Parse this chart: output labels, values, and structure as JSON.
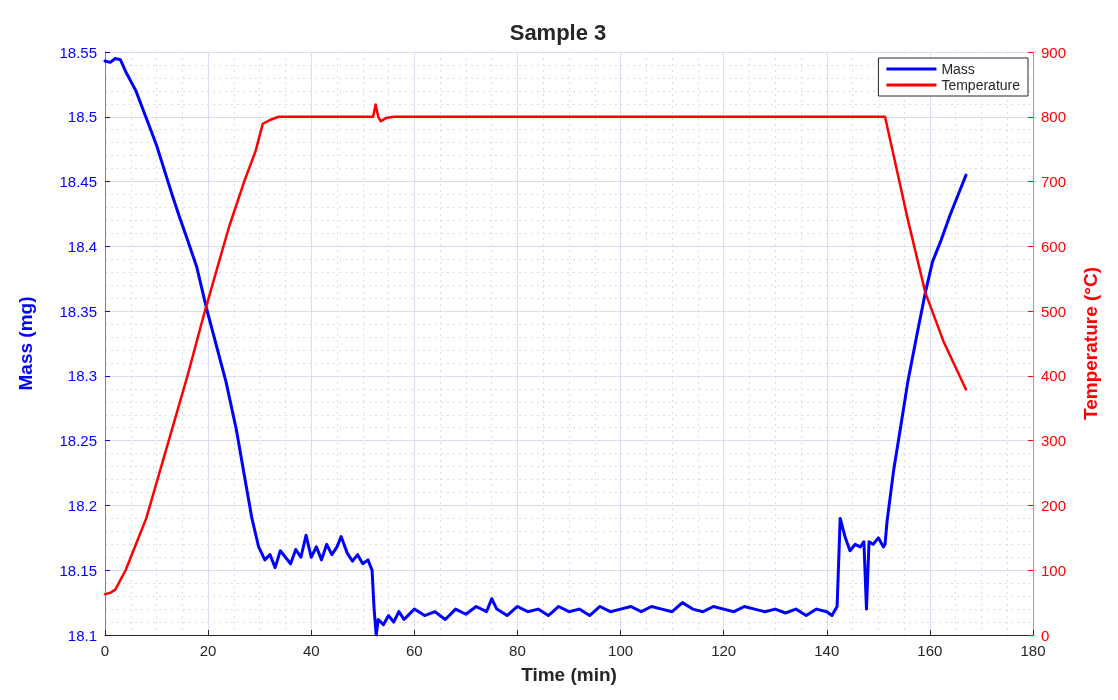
{
  "chart_data": {
    "type": "line",
    "title": "Sample 3",
    "xlabel": "Time (min)",
    "ylabel": "Mass (mg)",
    "y2label": "Temperature (°C)",
    "xlim": [
      0,
      180
    ],
    "xticks": [
      0,
      20,
      40,
      60,
      80,
      100,
      120,
      140,
      160,
      180
    ],
    "ylim": [
      18.1,
      18.55
    ],
    "yticks": [
      18.1,
      18.15,
      18.2,
      18.25,
      18.3,
      18.35,
      18.4,
      18.45,
      18.5,
      18.55
    ],
    "y2lim": [
      0,
      900
    ],
    "y2ticks": [
      0,
      100,
      200,
      300,
      400,
      500,
      600,
      700,
      800,
      900
    ],
    "grid": true,
    "legend": "top right",
    "marker": "none",
    "line_style": "solid",
    "series": [
      {
        "name": "Mass",
        "color": "#0000ff",
        "x": [
          0,
          1,
          2,
          3,
          4,
          6,
          8.2,
          10,
          11.5,
          13,
          14.5,
          16,
          17.8,
          19.7,
          21.5,
          23.5,
          25.5,
          27.3,
          28.5,
          29.8,
          31,
          32,
          33,
          34,
          35,
          36,
          37,
          38,
          39,
          40,
          41,
          42,
          43,
          44,
          45,
          45.8,
          47,
          48,
          49,
          50,
          51,
          51.8,
          52.2,
          52.6,
          53,
          54,
          55,
          56,
          57,
          58,
          60,
          62,
          64,
          66,
          68,
          70,
          72,
          74,
          75,
          76,
          78,
          80,
          82,
          84,
          86,
          88,
          90,
          92,
          94,
          96,
          98,
          100,
          102,
          104,
          106,
          108,
          110,
          112,
          114,
          116,
          118,
          120,
          122,
          124,
          126,
          128,
          130,
          132,
          134,
          136,
          138,
          140,
          141,
          142,
          142.6,
          143.6,
          144.5,
          145.5,
          146.5,
          147.2,
          147.7,
          148.2,
          149,
          150,
          151,
          151.3,
          151.7,
          153,
          154.3,
          155.7,
          157.4,
          159.1,
          160.5,
          162.2,
          163.9,
          165.5,
          167
        ],
        "values": [
          18.543,
          18.542,
          18.545,
          18.544,
          18.535,
          18.52,
          18.497,
          18.478,
          18.459,
          18.44,
          18.422,
          18.405,
          18.384,
          18.352,
          18.325,
          18.295,
          18.258,
          18.217,
          18.19,
          18.168,
          18.158,
          18.162,
          18.152,
          18.165,
          18.16,
          18.155,
          18.166,
          18.16,
          18.177,
          18.16,
          18.168,
          18.158,
          18.17,
          18.162,
          18.168,
          18.176,
          18.163,
          18.157,
          18.162,
          18.155,
          18.158,
          18.15,
          18.12,
          18.1,
          18.112,
          18.108,
          18.115,
          18.11,
          18.118,
          18.112,
          18.12,
          18.115,
          18.118,
          18.112,
          18.12,
          18.116,
          18.122,
          18.118,
          18.128,
          18.12,
          18.115,
          18.122,
          18.118,
          18.12,
          18.115,
          18.122,
          18.118,
          18.12,
          18.115,
          18.122,
          18.118,
          18.12,
          18.122,
          18.118,
          18.122,
          18.12,
          18.118,
          18.125,
          18.12,
          18.118,
          18.122,
          18.12,
          18.118,
          18.122,
          18.12,
          18.118,
          18.12,
          18.117,
          18.12,
          18.115,
          18.12,
          18.118,
          18.115,
          18.122,
          18.19,
          18.175,
          18.165,
          18.17,
          18.168,
          18.172,
          18.12,
          18.172,
          18.17,
          18.175,
          18.168,
          18.17,
          18.188,
          18.228,
          18.26,
          18.295,
          18.33,
          18.364,
          18.388,
          18.405,
          18.424,
          18.44,
          18.455
        ]
      },
      {
        "name": "Temperature",
        "color": "#ff0000",
        "axis": "y2",
        "x": [
          0,
          1,
          2,
          3,
          4,
          6,
          8,
          12,
          16,
          19.1,
          22,
          24.1,
          27,
          29.2,
          30.6,
          32,
          33.7,
          40,
          50,
          52,
          52.5,
          53,
          53.5,
          54.5,
          56,
          70,
          100,
          130,
          150,
          151.3,
          153,
          155.7,
          159.1,
          162.6,
          167
        ],
        "values": [
          63,
          65,
          70,
          85,
          100,
          140,
          180,
          290,
          400,
          492,
          573,
          631,
          700,
          747,
          789,
          795,
          800,
          800,
          800,
          800,
          819,
          800,
          793,
          798,
          800,
          800,
          800,
          800,
          800,
          800,
          739,
          642,
          529,
          454,
          379
        ]
      }
    ]
  }
}
